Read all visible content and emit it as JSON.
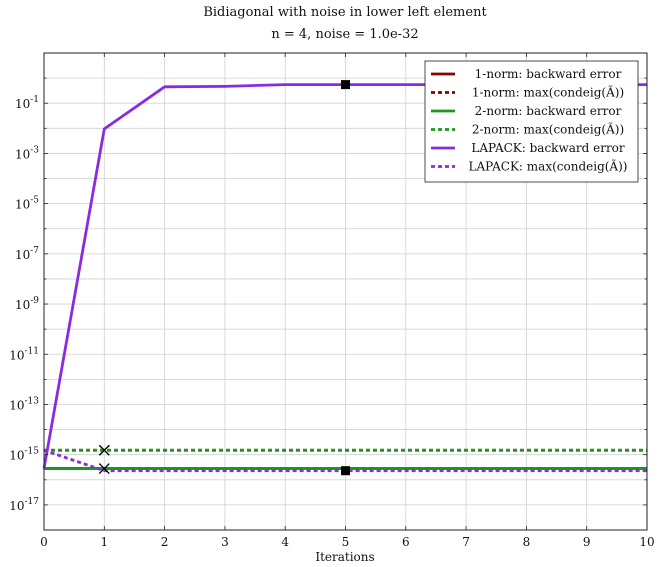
{
  "chart_data": {
    "type": "line",
    "title": "Bidiagonal with noise in lower left element",
    "subtitle": "n = 4, noise = 1.0e-32",
    "xlabel": "Iterations",
    "ylabel": "",
    "xlim": [
      0,
      10
    ],
    "ylim_log10": [
      -18,
      1
    ],
    "y_scale": "log",
    "grid": true,
    "legend_position": "top-right",
    "x_ticks": [
      0,
      1,
      2,
      3,
      4,
      5,
      6,
      7,
      8,
      9,
      10
    ],
    "y_ticks": [
      {
        "exp": -17,
        "label": "10^-17"
      },
      {
        "exp": -15,
        "label": "10^-15"
      },
      {
        "exp": -13,
        "label": "10^-13"
      },
      {
        "exp": -11,
        "label": "10^-11"
      },
      {
        "exp": -9,
        "label": "10^-9"
      },
      {
        "exp": -7,
        "label": "10^-7"
      },
      {
        "exp": -5,
        "label": "10^-5"
      },
      {
        "exp": -3,
        "label": "10^-3"
      },
      {
        "exp": -1,
        "label": "10^-1"
      }
    ],
    "series": [
      {
        "name": "1-norm: backward error",
        "color": "#8b0000",
        "dash": "solid",
        "x": [
          0,
          1,
          2,
          3,
          4,
          5,
          6,
          7,
          8,
          9,
          10
        ],
        "y": [
          2.8e-16,
          2.8e-16,
          2.8e-16,
          2.8e-16,
          2.8e-16,
          2.8e-16,
          2.8e-16,
          2.8e-16,
          2.8e-16,
          2.8e-16,
          2.8e-16
        ]
      },
      {
        "name": "1-norm: max(condeig(Ã))",
        "color": "#8b0000",
        "dash": "dotted",
        "x": [
          0,
          1,
          2,
          3,
          4,
          5,
          6,
          7,
          8,
          9,
          10
        ],
        "y": [
          1.5e-15,
          1.5e-15,
          1.5e-15,
          1.5e-15,
          1.5e-15,
          1.5e-15,
          1.5e-15,
          1.5e-15,
          1.5e-15,
          1.5e-15,
          1.5e-15
        ]
      },
      {
        "name": "2-norm: backward error",
        "color": "#1a9a1a",
        "dash": "solid",
        "x": [
          0,
          1,
          2,
          3,
          4,
          5,
          6,
          7,
          8,
          9,
          10
        ],
        "y": [
          2.8e-16,
          2.8e-16,
          2.8e-16,
          2.8e-16,
          2.8e-16,
          2.8e-16,
          2.8e-16,
          2.8e-16,
          2.8e-16,
          2.8e-16,
          2.8e-16
        ]
      },
      {
        "name": "2-norm: max(condeig(Ã))",
        "color": "#1a9a1a",
        "dash": "dotted",
        "x": [
          0,
          1,
          2,
          3,
          4,
          5,
          6,
          7,
          8,
          9,
          10
        ],
        "y": [
          1.5e-15,
          1.5e-15,
          1.5e-15,
          1.5e-15,
          1.5e-15,
          1.5e-15,
          1.5e-15,
          1.5e-15,
          1.5e-15,
          1.5e-15,
          1.5e-15
        ]
      },
      {
        "name": "LAPACK: backward error",
        "color": "#8a2be2",
        "dash": "solid",
        "x": [
          0,
          1,
          2,
          3,
          4,
          5,
          6,
          7,
          8,
          9,
          10
        ],
        "y": [
          2.8e-16,
          0.0095,
          0.45,
          0.47,
          0.55,
          0.55,
          0.55,
          0.55,
          0.55,
          0.55,
          0.55
        ]
      },
      {
        "name": "LAPACK: max(condeig(Ã))",
        "color": "#8a2be2",
        "dash": "dotted",
        "x": [
          0,
          1,
          2,
          3,
          4,
          5,
          6,
          7,
          8,
          9,
          10
        ],
        "y": [
          1.5e-15,
          2.3e-16,
          2.3e-16,
          2.3e-16,
          2.3e-16,
          2.3e-16,
          2.3e-16,
          2.3e-16,
          2.3e-16,
          2.3e-16,
          2.3e-16
        ]
      }
    ],
    "markers": [
      {
        "shape": "x",
        "x": 1,
        "y": 1.5e-15
      },
      {
        "shape": "x",
        "x": 1,
        "y": 2.8e-16
      },
      {
        "shape": "square",
        "x": 5,
        "y": 0.55
      },
      {
        "shape": "square",
        "x": 5,
        "y": 2.3e-16
      }
    ]
  }
}
